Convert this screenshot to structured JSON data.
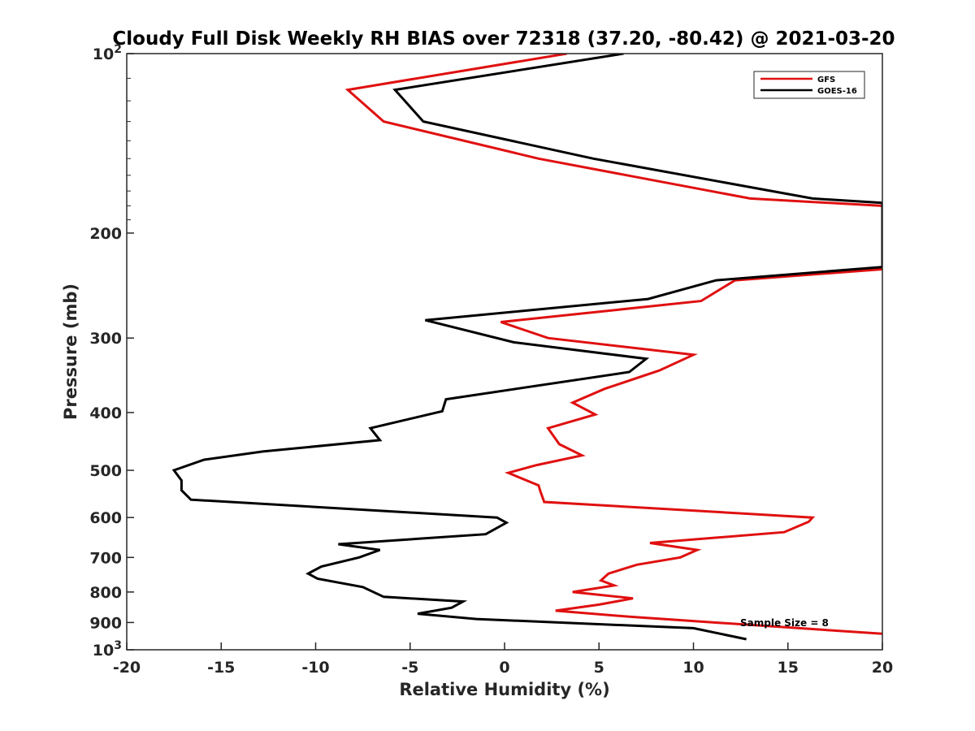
{
  "chart_data": {
    "type": "line",
    "title": "Cloudy Full Disk Weekly RH BIAS over 72318 (37.20, -80.42) @ 2021-03-20",
    "xlabel": "Relative Humidity (%)",
    "ylabel": "Pressure (mb)",
    "xlim": [
      -20,
      20
    ],
    "ylim": [
      100,
      1000
    ],
    "yscale": "log",
    "yaxis_reversed": true,
    "grid": false,
    "legend_position": "top-right",
    "x_ticks": [
      "-20",
      "-15",
      "-10",
      "-5",
      "0",
      "5",
      "10",
      "15",
      "20"
    ],
    "y_ticks": [
      {
        "value": 100,
        "base": "10",
        "exp": "2"
      },
      {
        "value": 200,
        "label": "200"
      },
      {
        "value": 300,
        "label": "300"
      },
      {
        "value": 400,
        "label": "400"
      },
      {
        "value": 500,
        "label": "500"
      },
      {
        "value": 600,
        "label": "600"
      },
      {
        "value": 700,
        "label": "700"
      },
      {
        "value": 800,
        "label": "800"
      },
      {
        "value": 900,
        "label": "900"
      },
      {
        "value": 1000,
        "base": "10",
        "exp": "3"
      }
    ],
    "annotation": "Sample Size = 8",
    "series": [
      {
        "name": "GFS",
        "color": "#e01010",
        "points": [
          [
            3.3,
            100
          ],
          [
            -8.3,
            115
          ],
          [
            -6.4,
            130
          ],
          [
            1.8,
            150
          ],
          [
            13.0,
            175
          ],
          [
            20.0,
            180
          ],
          [
            20.0,
            230
          ],
          [
            12.2,
            240
          ],
          [
            10.4,
            260
          ],
          [
            -0.2,
            282
          ],
          [
            2.3,
            300
          ],
          [
            10.0,
            320
          ],
          [
            8.2,
            340
          ],
          [
            5.3,
            365
          ],
          [
            3.6,
            385
          ],
          [
            4.8,
            403
          ],
          [
            2.3,
            425
          ],
          [
            2.9,
            452
          ],
          [
            4.1,
            472
          ],
          [
            1.7,
            490
          ],
          [
            0.2,
            505
          ],
          [
            1.8,
            530
          ],
          [
            1.9,
            543
          ],
          [
            2.1,
            565
          ],
          [
            16.3,
            600
          ],
          [
            16.1,
            610
          ],
          [
            14.8,
            635
          ],
          [
            7.7,
            662
          ],
          [
            10.2,
            680
          ],
          [
            9.3,
            700
          ],
          [
            7.0,
            720
          ],
          [
            5.5,
            745
          ],
          [
            5.1,
            765
          ],
          [
            5.8,
            780
          ],
          [
            3.6,
            800
          ],
          [
            6.8,
            820
          ],
          [
            5.0,
            840
          ],
          [
            2.7,
            860
          ],
          [
            6.6,
            880
          ],
          [
            20.0,
            940
          ]
        ]
      },
      {
        "name": "GOES-16",
        "color": "#000000",
        "points": [
          [
            6.3,
            100
          ],
          [
            -5.8,
            115
          ],
          [
            -4.3,
            130
          ],
          [
            4.7,
            150
          ],
          [
            16.3,
            175
          ],
          [
            20.0,
            178
          ],
          [
            20.0,
            228
          ],
          [
            11.2,
            240
          ],
          [
            7.6,
            258
          ],
          [
            -4.2,
            280
          ],
          [
            0.5,
            305
          ],
          [
            7.5,
            325
          ],
          [
            6.6,
            342
          ],
          [
            -3.1,
            380
          ],
          [
            -3.3,
            398
          ],
          [
            -7.1,
            425
          ],
          [
            -6.6,
            445
          ],
          [
            -12.8,
            465
          ],
          [
            -15.9,
            480
          ],
          [
            -17.5,
            500
          ],
          [
            -17.1,
            520
          ],
          [
            -17.1,
            540
          ],
          [
            -16.6,
            560
          ],
          [
            -0.4,
            600
          ],
          [
            0.1,
            612
          ],
          [
            -1.0,
            640
          ],
          [
            -8.8,
            665
          ],
          [
            -6.6,
            680
          ],
          [
            -7.7,
            700
          ],
          [
            -9.7,
            725
          ],
          [
            -10.4,
            745
          ],
          [
            -9.9,
            760
          ],
          [
            -7.5,
            785
          ],
          [
            -6.4,
            815
          ],
          [
            -2.2,
            830
          ],
          [
            -2.8,
            850
          ],
          [
            -4.6,
            870
          ],
          [
            -1.5,
            888
          ],
          [
            10.0,
            920
          ],
          [
            12.8,
            960
          ]
        ]
      }
    ]
  }
}
